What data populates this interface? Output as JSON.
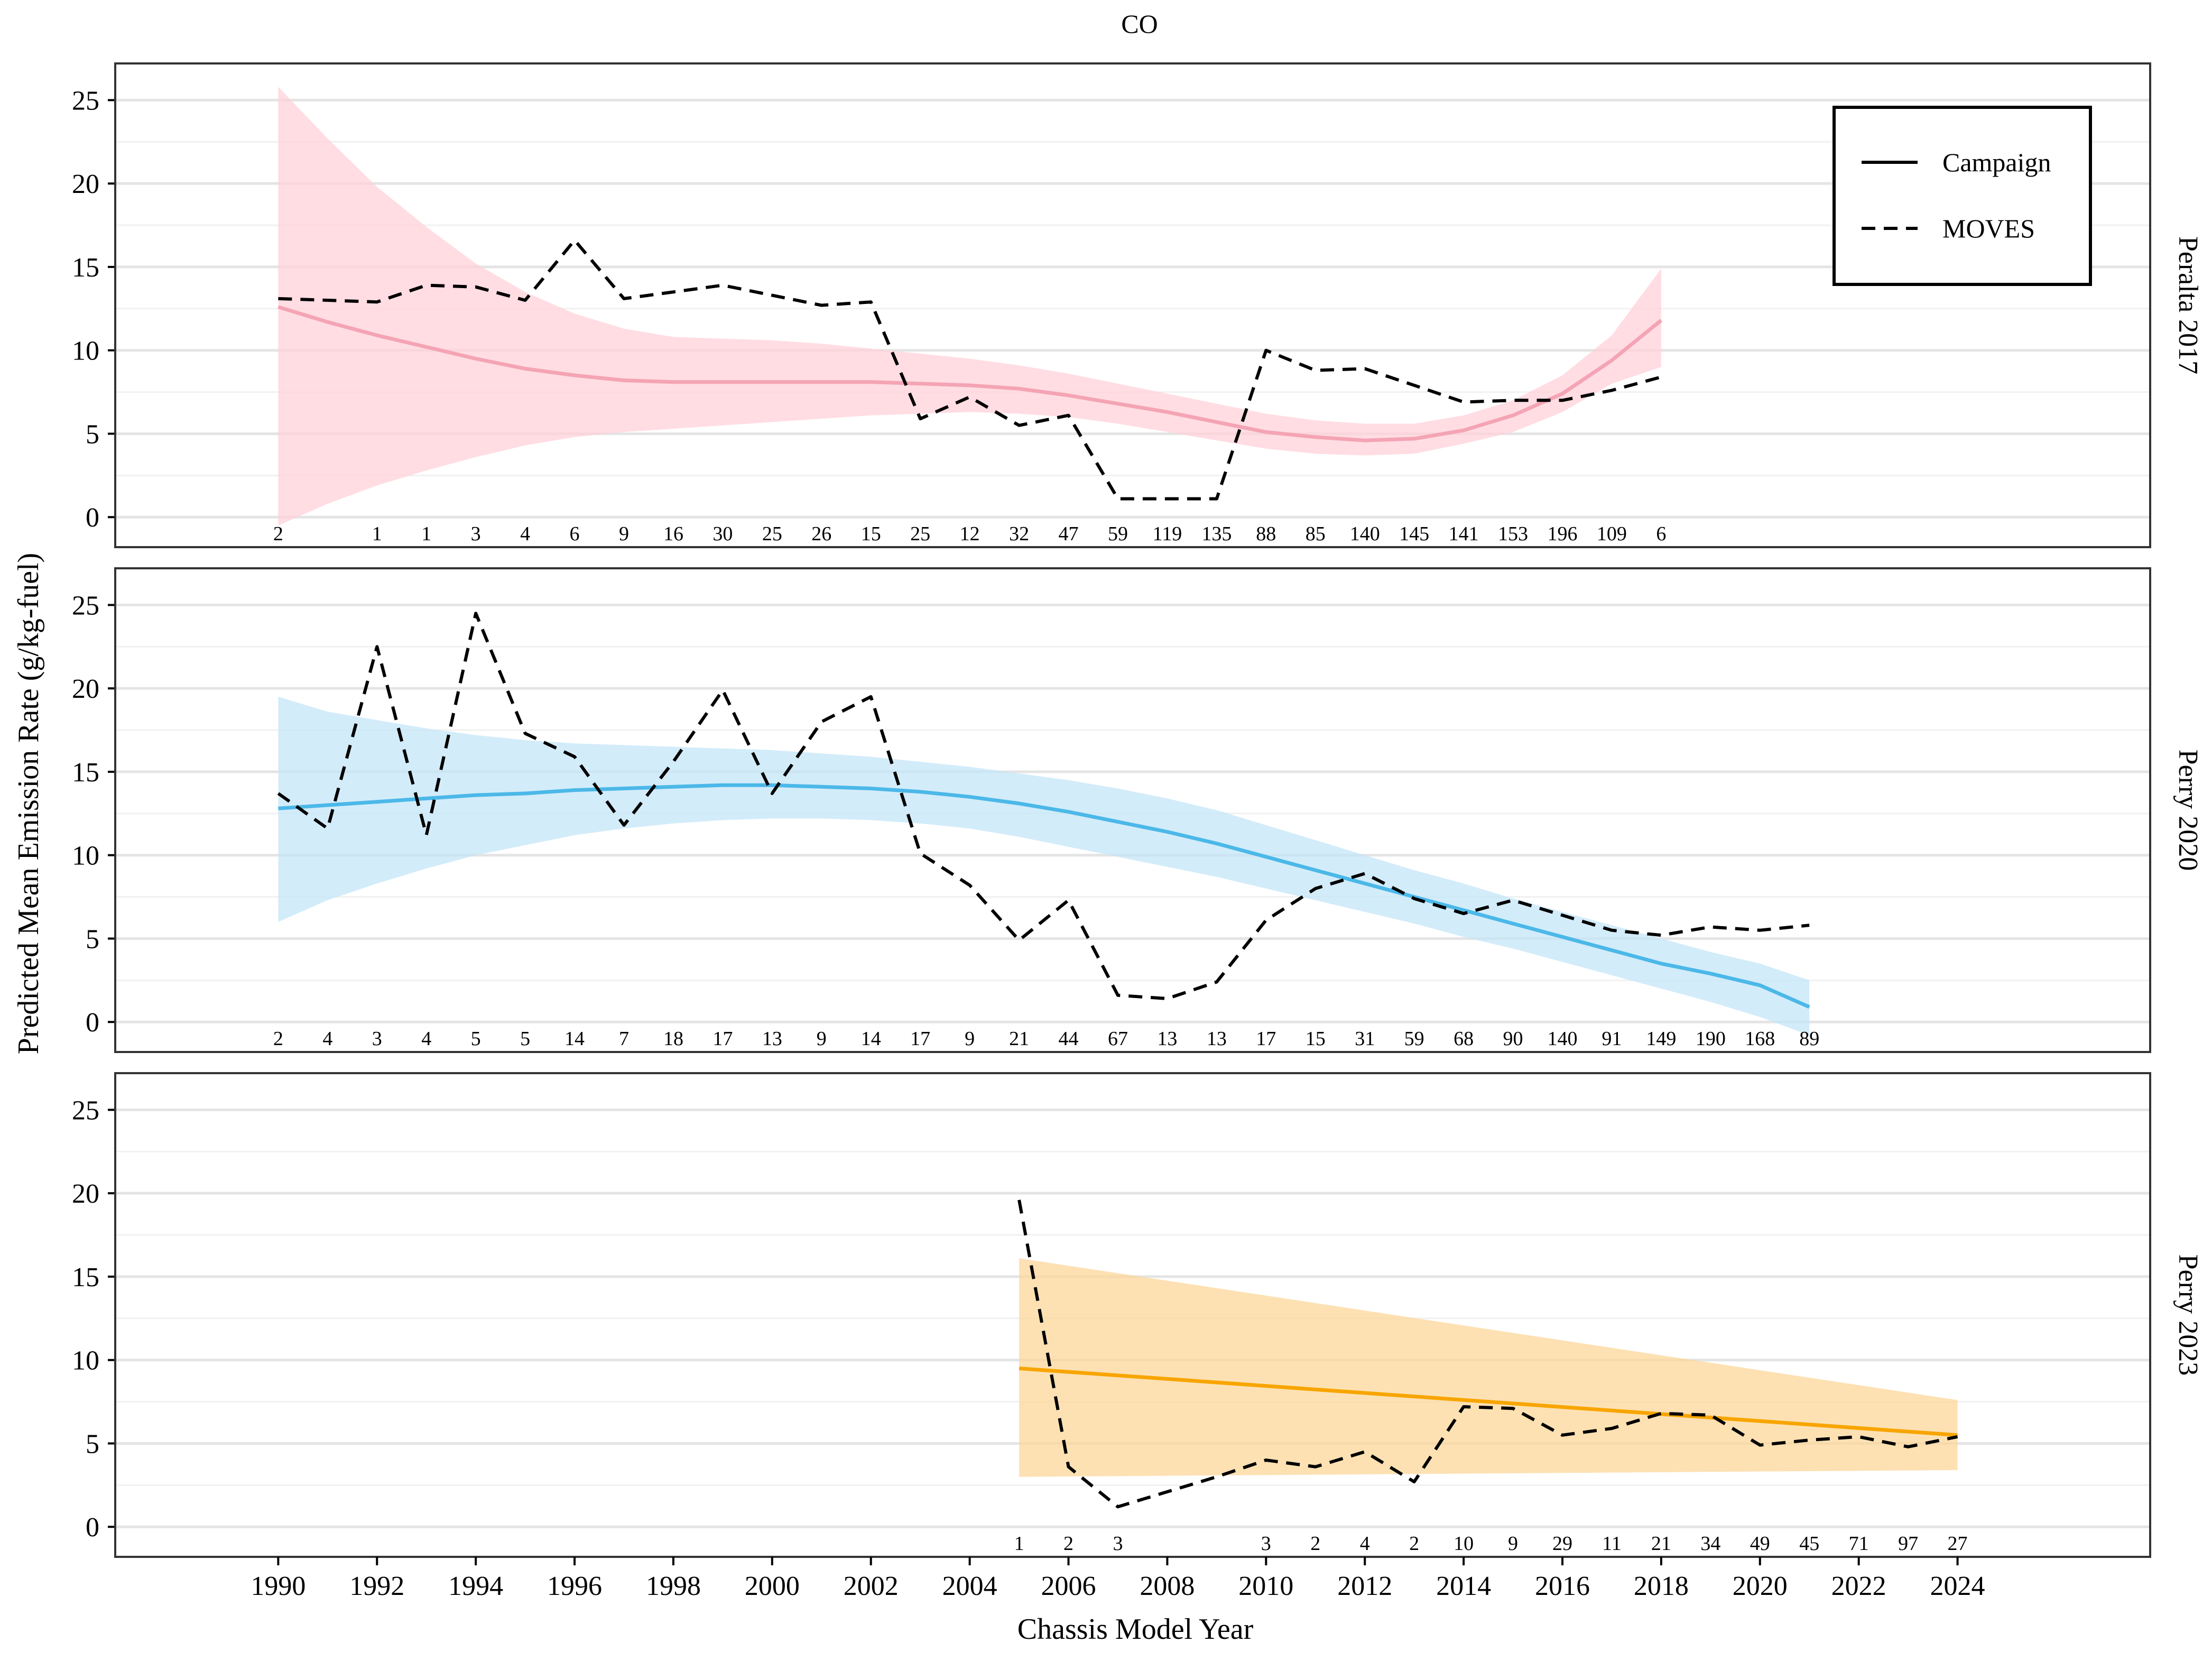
{
  "chart_data": {
    "type": "line",
    "title": "CO",
    "xlabel": "Chassis Model Year",
    "ylabel": "Predicted Mean Emission Rate (g/kg-fuel)",
    "x_ticks": [
      1990,
      1992,
      1994,
      1996,
      1998,
      2000,
      2002,
      2004,
      2006,
      2008,
      2010,
      2012,
      2014,
      2016,
      2018,
      2020,
      2022,
      2024
    ],
    "xlim": [
      1986.7,
      2027.9
    ],
    "ylim": [
      -1.8,
      27.2
    ],
    "y_ticks": [
      0,
      5,
      10,
      15,
      20,
      25
    ],
    "legend": {
      "position": "top-right",
      "entries": [
        {
          "label": "Campaign",
          "linetype": "solid"
        },
        {
          "label": "MOVES",
          "linetype": "dashed"
        }
      ]
    },
    "panels": [
      {
        "strip": "Peralta 2017",
        "color": "#f4a4b4",
        "band_color": "#ffd1da",
        "campaign": {
          "x": [
            1990,
            1991,
            1992,
            1993,
            1994,
            1995,
            1996,
            1997,
            1998,
            1999,
            2000,
            2001,
            2002,
            2003,
            2004,
            2005,
            2006,
            2007,
            2008,
            2009,
            2010,
            2011,
            2012,
            2013,
            2014,
            2015,
            2016,
            2017,
            2018
          ],
          "y": [
            12.6,
            11.7,
            10.9,
            10.2,
            9.5,
            8.9,
            8.5,
            8.2,
            8.1,
            8.1,
            8.1,
            8.1,
            8.1,
            8.0,
            7.9,
            7.7,
            7.3,
            6.8,
            6.3,
            5.7,
            5.1,
            4.8,
            4.6,
            4.7,
            5.2,
            6.1,
            7.4,
            9.4,
            11.8
          ],
          "lower": [
            -0.5,
            0.8,
            1.9,
            2.8,
            3.6,
            4.3,
            4.8,
            5.1,
            5.3,
            5.5,
            5.7,
            5.9,
            6.1,
            6.2,
            6.3,
            6.2,
            6.0,
            5.6,
            5.1,
            4.6,
            4.1,
            3.8,
            3.7,
            3.8,
            4.4,
            5.1,
            6.3,
            8.0,
            9.0
          ],
          "upper": [
            25.8,
            22.7,
            19.8,
            17.4,
            15.2,
            13.5,
            12.2,
            11.3,
            10.8,
            10.7,
            10.6,
            10.4,
            10.1,
            9.8,
            9.5,
            9.1,
            8.6,
            8.0,
            7.4,
            6.8,
            6.2,
            5.8,
            5.6,
            5.6,
            6.1,
            7.0,
            8.5,
            10.9,
            14.9
          ]
        },
        "moves": {
          "x": [
            1990,
            1991,
            1992,
            1993,
            1994,
            1995,
            1996,
            1997,
            1998,
            1999,
            2000,
            2001,
            2002,
            2003,
            2004,
            2005,
            2006,
            2007,
            2008,
            2009,
            2010,
            2011,
            2012,
            2013,
            2014,
            2015,
            2016,
            2017,
            2018
          ],
          "y": [
            13.1,
            13.0,
            12.9,
            13.9,
            13.8,
            13.0,
            16.6,
            13.1,
            13.5,
            13.9,
            13.3,
            12.7,
            12.9,
            5.9,
            7.2,
            5.5,
            6.1,
            1.1,
            1.1,
            1.1,
            10.0,
            8.8,
            8.9,
            7.9,
            6.9,
            7.0,
            7.0,
            7.6,
            8.4
          ]
        },
        "counts": {
          "x": [
            1990,
            1992,
            1993,
            1994,
            1995,
            1996,
            1997,
            1998,
            1999,
            2000,
            2001,
            2002,
            2003,
            2004,
            2005,
            2006,
            2007,
            2008,
            2009,
            2010,
            2011,
            2012,
            2013,
            2014,
            2015,
            2016,
            2017,
            2018
          ],
          "labels": [
            "2",
            "1",
            "1",
            "3",
            "4",
            "6",
            "9",
            "16",
            "30",
            "25",
            "26",
            "15",
            "25",
            "12",
            "32",
            "47",
            "59",
            "119",
            "135",
            "88",
            "85",
            "140",
            "145",
            "141",
            "153",
            "196",
            "109",
            "6"
          ]
        }
      },
      {
        "strip": "Perry 2020",
        "color": "#4bb8e8",
        "band_color": "#c4e6f8",
        "campaign": {
          "x": [
            1990,
            1991,
            1992,
            1993,
            1994,
            1995,
            1996,
            1997,
            1998,
            1999,
            2000,
            2001,
            2002,
            2003,
            2004,
            2005,
            2006,
            2007,
            2008,
            2009,
            2010,
            2011,
            2012,
            2013,
            2014,
            2015,
            2016,
            2017,
            2018,
            2019,
            2020,
            2021
          ],
          "y": [
            12.8,
            13.0,
            13.2,
            13.4,
            13.6,
            13.7,
            13.9,
            14.0,
            14.1,
            14.2,
            14.2,
            14.1,
            14.0,
            13.8,
            13.5,
            13.1,
            12.6,
            12.0,
            11.4,
            10.7,
            9.9,
            9.1,
            8.3,
            7.5,
            6.7,
            5.9,
            5.1,
            4.3,
            3.5,
            2.9,
            2.2,
            0.9
          ],
          "lower": [
            6.0,
            7.3,
            8.3,
            9.2,
            10.0,
            10.6,
            11.2,
            11.6,
            11.9,
            12.1,
            12.2,
            12.2,
            12.1,
            11.9,
            11.6,
            11.1,
            10.5,
            9.9,
            9.3,
            8.7,
            8.0,
            7.3,
            6.6,
            5.9,
            5.1,
            4.4,
            3.6,
            2.8,
            2.0,
            1.2,
            0.3,
            -0.8
          ],
          "upper": [
            19.5,
            18.6,
            18.1,
            17.6,
            17.2,
            16.9,
            16.7,
            16.6,
            16.5,
            16.4,
            16.3,
            16.1,
            15.9,
            15.6,
            15.3,
            14.9,
            14.5,
            14.0,
            13.4,
            12.7,
            11.8,
            10.9,
            10.0,
            9.1,
            8.3,
            7.4,
            6.6,
            5.8,
            5.0,
            4.2,
            3.5,
            2.5
          ]
        },
        "moves": {
          "x": [
            1990,
            1991,
            1992,
            1993,
            1994,
            1995,
            1996,
            1997,
            1998,
            1999,
            2000,
            2001,
            2002,
            2003,
            2004,
            2005,
            2006,
            2007,
            2008,
            2009,
            2010,
            2011,
            2012,
            2013,
            2014,
            2015,
            2016,
            2017,
            2018,
            2019,
            2020,
            2021
          ],
          "y": [
            13.7,
            11.6,
            22.5,
            11.2,
            24.5,
            17.3,
            15.9,
            11.8,
            15.6,
            19.9,
            13.7,
            18.0,
            19.5,
            10.1,
            8.2,
            4.9,
            7.3,
            1.6,
            1.4,
            2.4,
            6.1,
            8.0,
            8.9,
            7.4,
            6.5,
            7.3,
            6.4,
            5.5,
            5.2,
            5.7,
            5.5,
            5.8
          ]
        },
        "counts": {
          "x": [
            1990,
            1991,
            1992,
            1993,
            1994,
            1995,
            1996,
            1997,
            1998,
            1999,
            2000,
            2001,
            2002,
            2003,
            2004,
            2005,
            2006,
            2007,
            2008,
            2009,
            2010,
            2011,
            2012,
            2013,
            2014,
            2015,
            2016,
            2017,
            2018,
            2019,
            2020,
            2021
          ],
          "labels": [
            "2",
            "4",
            "3",
            "4",
            "5",
            "5",
            "14",
            "7",
            "18",
            "17",
            "13",
            "9",
            "14",
            "17",
            "9",
            "21",
            "44",
            "67",
            "13",
            "13",
            "17",
            "15",
            "31",
            "59",
            "68",
            "90",
            "140",
            "91",
            "149",
            "190",
            "168",
            "89"
          ]
        }
      },
      {
        "strip": "Perry 2023",
        "color": "#f8a500",
        "band_color": "#fcd79a",
        "campaign": {
          "x": [
            2005,
            2024
          ],
          "y": [
            9.5,
            5.5
          ],
          "lower": [
            3.0,
            3.4
          ],
          "upper": [
            16.1,
            7.6
          ]
        },
        "moves": {
          "x": [
            2005,
            2006,
            2007,
            2008,
            2009,
            2010,
            2011,
            2012,
            2013,
            2014,
            2015,
            2016,
            2017,
            2018,
            2019,
            2020,
            2021,
            2022,
            2023,
            2024
          ],
          "y": [
            19.6,
            3.6,
            1.2,
            2.1,
            3.0,
            4.0,
            3.6,
            4.5,
            2.7,
            7.2,
            7.1,
            5.5,
            5.9,
            6.8,
            6.7,
            4.9,
            5.2,
            5.4,
            4.8,
            5.4
          ]
        },
        "counts": {
          "x": [
            2005,
            2006,
            2007,
            2010,
            2011,
            2012,
            2013,
            2014,
            2015,
            2016,
            2017,
            2018,
            2019,
            2020,
            2021,
            2022,
            2023,
            2024
          ],
          "labels": [
            "1",
            "2",
            "3",
            "3",
            "2",
            "4",
            "2",
            "10",
            "9",
            "29",
            "11",
            "21",
            "34",
            "49",
            "45",
            "71",
            "97",
            "27"
          ]
        }
      }
    ]
  }
}
